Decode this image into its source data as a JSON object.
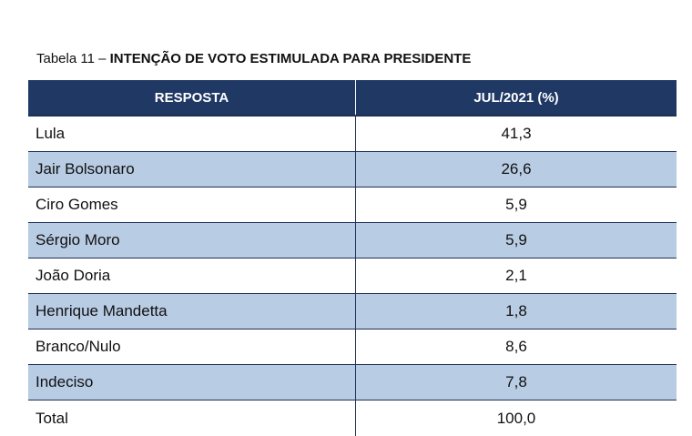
{
  "caption": {
    "prefix": "Tabela 11 – ",
    "title": "INTENÇÃO DE VOTO ESTIMULADA PARA PRESIDENTE"
  },
  "table": {
    "headers": [
      "RESPOSTA",
      "JUL/2021 (%)"
    ],
    "rows": [
      {
        "name": "Lula",
        "value": "41,3"
      },
      {
        "name": "Jair Bolsonaro",
        "value": "26,6"
      },
      {
        "name": "Ciro Gomes",
        "value": "5,9"
      },
      {
        "name": "Sérgio Moro",
        "value": "5,9"
      },
      {
        "name": "João Doria",
        "value": "2,1"
      },
      {
        "name": "Henrique Mandetta",
        "value": "1,8"
      },
      {
        "name": "Branco/Nulo",
        "value": "8,6"
      },
      {
        "name": "Indeciso",
        "value": "7,8"
      },
      {
        "name": "Total",
        "value": "100,0"
      }
    ]
  },
  "colors": {
    "header_bg": "#1f3864",
    "shaded_row": "#b8cce4"
  }
}
